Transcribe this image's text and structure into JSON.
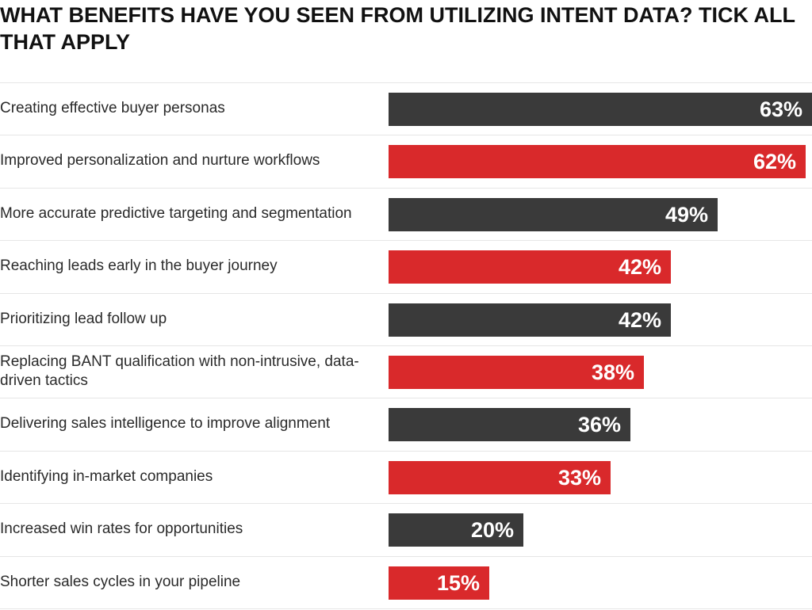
{
  "chart_data": {
    "type": "bar",
    "orientation": "horizontal",
    "title": "WHAT BENEFITS HAVE YOU SEEN FROM UTILIZING INTENT DATA? TICK ALL THAT APPLY",
    "xlabel": "",
    "ylabel": "",
    "xlim": [
      0,
      63
    ],
    "grid": false,
    "categories": [
      "Creating effective buyer personas",
      "Improved personalization and nurture workflows",
      "More accurate predictive targeting and segmentation",
      "Reaching leads early in the buyer journey",
      "Prioritizing lead follow up",
      "Replacing BANT qualification with non-intrusive, data-driven tactics",
      "Delivering sales intelligence to improve alignment",
      "Identifying in-market companies",
      "Increased win rates for opportunities",
      "Shorter sales cycles in your pipeline"
    ],
    "values": [
      63,
      62,
      49,
      42,
      42,
      38,
      36,
      33,
      20,
      15
    ],
    "value_labels": [
      "63%",
      "62%",
      "49%",
      "42%",
      "42%",
      "38%",
      "36%",
      "33%",
      "20%",
      "15%"
    ],
    "bar_colors": [
      "#3a3a3a",
      "#d9292b",
      "#3a3a3a",
      "#d9292b",
      "#3a3a3a",
      "#d9292b",
      "#3a3a3a",
      "#d9292b",
      "#3a3a3a",
      "#d9292b"
    ]
  }
}
